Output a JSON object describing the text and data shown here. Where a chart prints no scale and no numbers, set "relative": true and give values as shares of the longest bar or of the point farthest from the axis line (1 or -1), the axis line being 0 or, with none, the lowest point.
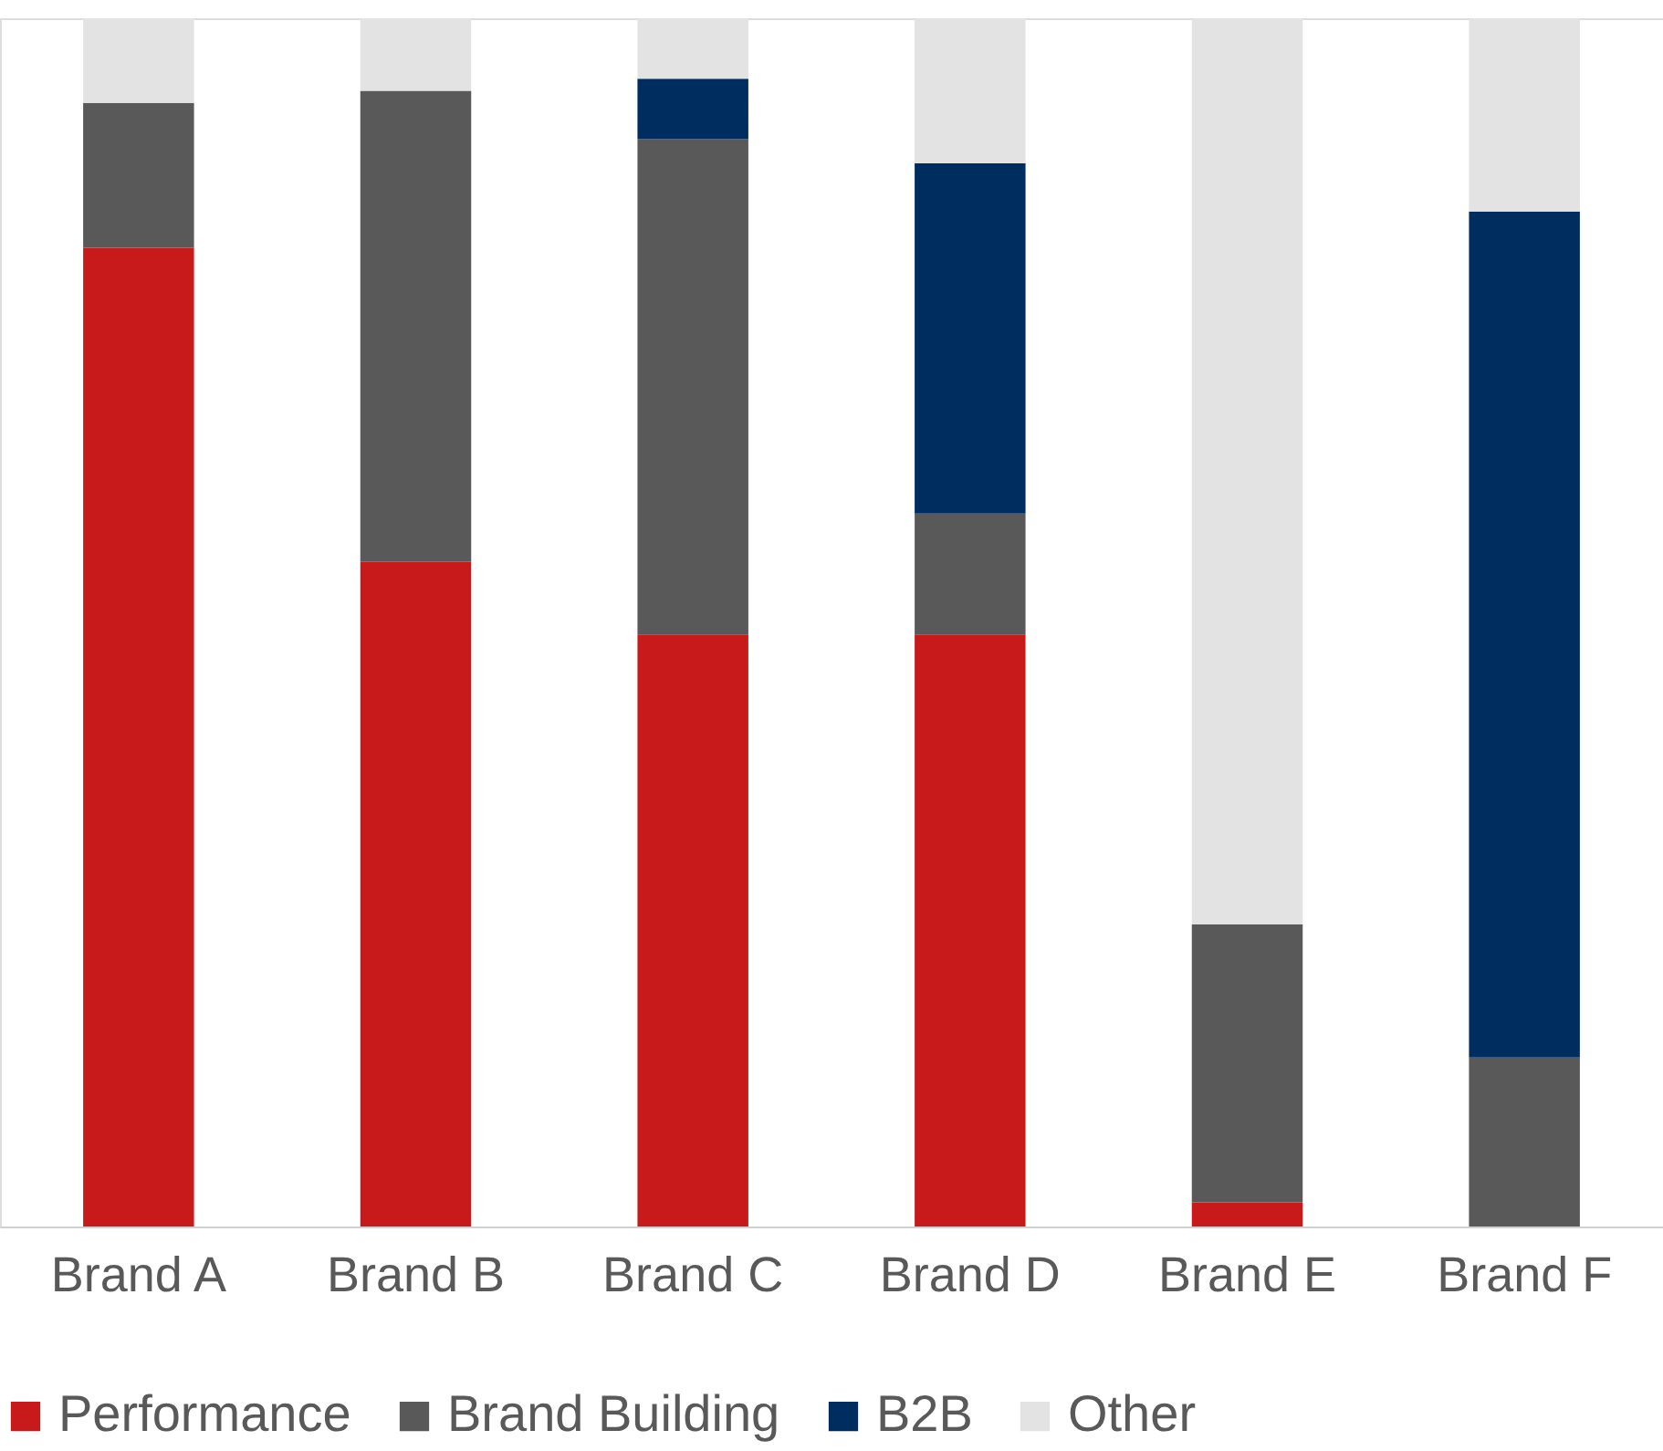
{
  "chart_data": {
    "type": "bar",
    "stacked": true,
    "relative": true,
    "legend": "bottom",
    "categories": [
      "Brand A",
      "Brand B",
      "Brand C",
      "Brand D",
      "Brand E",
      "Brand F"
    ],
    "series": [
      {
        "name": "Performance",
        "color": "#c81a1a",
        "values": [
          0.81,
          0.55,
          0.49,
          0.49,
          0.02,
          0
        ]
      },
      {
        "name": "Brand Building",
        "color": "#595959",
        "values": [
          0.12,
          0.39,
          0.41,
          0.1,
          0.23,
          0.14
        ]
      },
      {
        "name": "B2B",
        "color": "#002d5f",
        "values": [
          0,
          0,
          0.05,
          0.29,
          0,
          0.7
        ]
      },
      {
        "name": "Other",
        "color": "#e3e3e3",
        "values": [
          0.07,
          0.06,
          0.05,
          0.12,
          0.75,
          0.16
        ]
      }
    ]
  }
}
